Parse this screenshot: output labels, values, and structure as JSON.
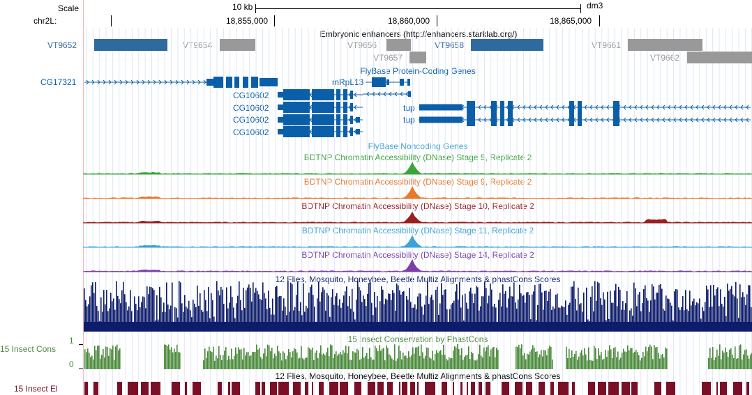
{
  "header": {
    "scale_label": "Scale",
    "scale_bar_label": "10 kb",
    "assembly": "dm3",
    "chrom_label": "chr2L:",
    "positions": [
      "18,855,000",
      "18,860,000",
      "18,865,000"
    ]
  },
  "enhancers": {
    "title": "Embryonic enhancers (http://enhancers.starklab.org/)",
    "items": [
      {
        "name": "VT9652",
        "color": "#2f6a9f"
      },
      {
        "name": "VT9654",
        "color": "#999999"
      },
      {
        "name": "VT9656",
        "color": "#999999"
      },
      {
        "name": "VT9657",
        "color": "#999999"
      },
      {
        "name": "VT9658",
        "color": "#2f6a9f"
      },
      {
        "name": "VT9661",
        "color": "#999999"
      },
      {
        "name": "VT9662",
        "color": "#999999"
      }
    ]
  },
  "genes": {
    "title": "FlyBase Protein-Coding Genes",
    "color": "#0b5fa8",
    "names": [
      "CG17321",
      "mRpL13",
      "CG10602",
      "CG10602",
      "CG10602",
      "CG10602",
      "tup",
      "tup"
    ]
  },
  "noncoding": {
    "title": "FlyBase Noncoding Genes"
  },
  "dnase": [
    {
      "title": "BDTNP Chromatin Accessibility (DNase) Stage 5, Replicate 2",
      "color": "#3aa53a"
    },
    {
      "title": "BDTNP Chromatin Accessibility (DNase) Stage 9, Replicate 2",
      "color": "#e8782a"
    },
    {
      "title": "BDTNP Chromatin Accessibility (DNase) Stage 10, Replicate 2",
      "color": "#9a1e1e"
    },
    {
      "title": "BDTNP Chromatin Accessibility (DNase) Stage 11, Replicate 2",
      "color": "#3ba3d6"
    },
    {
      "title": "BDTNP Chromatin Accessibility (DNase) Stage 14, Replicate 2",
      "color": "#7b3fa8"
    }
  ],
  "multiz": {
    "title": "12 Flies, Mosquito, Honeybee, Beetle Multiz Alignments & phastCons Scores",
    "color": "#0d1c6b"
  },
  "phastcons": {
    "title": "15 Insect Conservation by PhastCons",
    "side_label": "15 Insect Cons",
    "ymax": "1",
    "ymin": "0",
    "color": "#4a8a3a"
  },
  "elements": {
    "title": "12 Flies, Mosquito, Honeybee, Beetle Multiz Alignments & phastCons Scores",
    "side_label": "15 Insect El",
    "color": "#7a1028"
  }
}
